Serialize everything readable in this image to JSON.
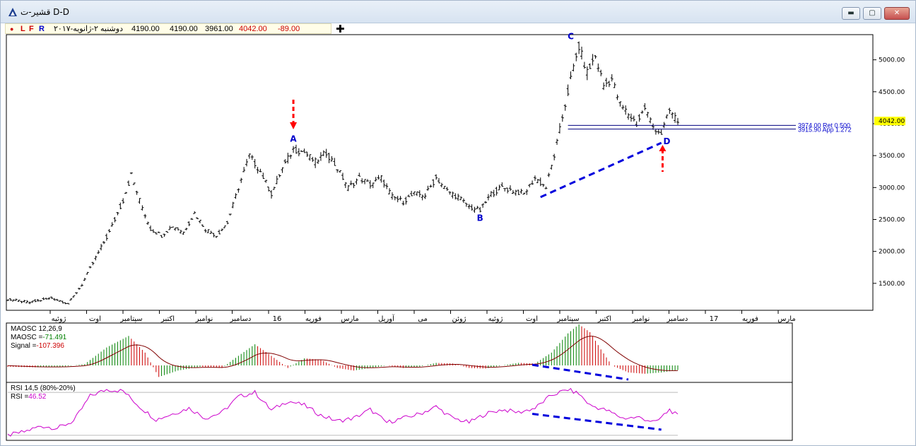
{
  "window": {
    "title": "قشیر-ت D-D",
    "buttons": {
      "minimize": "▬",
      "restore": "▢",
      "close": "✕"
    }
  },
  "toolbar": {
    "dot": "●",
    "l": "L",
    "f": "F",
    "r": "R",
    "date": "دوشنبه ۲-ژانویه-۲۰۱۷",
    "open": "4190.00",
    "high": "4190.00",
    "low": "3961.00",
    "close": "4042.00",
    "change": "-89.00",
    "plus": "✚"
  },
  "colors": {
    "up": "#008000",
    "down": "#cc0000",
    "rsi": "#cc00cc",
    "blue_line": "#0000dd",
    "annot": "#0000cc",
    "arrow": "#ff0000",
    "last_price_bg": "#ffff00"
  },
  "chart_data": [
    {
      "type": "bar",
      "name": "price",
      "ylim": [
        1100,
        5350
      ],
      "yticks": [
        "5000.00",
        "4500.00",
        "4000.00",
        "3500.00",
        "3000.00",
        "2500.00",
        "2000.00",
        "1500.00"
      ],
      "last_price": "4042.00",
      "xticks": [
        "ژوئیه",
        "اوت",
        "سپتامبر",
        "اکتبر",
        "نوامبر",
        "دسامبر",
        "16",
        "فوریه",
        "مارس",
        "آوریل",
        "می",
        "ژوئن",
        "ژوئیه",
        "اوت",
        "سپتامبر",
        "اکتبر",
        "نوامبر",
        "دسامبر",
        "17",
        "فوریه",
        "مارس"
      ],
      "points": [
        {
          "t": 0,
          "v": 1250
        },
        {
          "t": 8,
          "v": 1200
        },
        {
          "t": 16,
          "v": 1270
        },
        {
          "t": 22,
          "v": 1180
        },
        {
          "t": 27,
          "v": 1480
        },
        {
          "t": 32,
          "v": 1900
        },
        {
          "t": 37,
          "v": 2300
        },
        {
          "t": 42,
          "v": 2800
        },
        {
          "t": 45,
          "v": 3200
        },
        {
          "t": 48,
          "v": 2800
        },
        {
          "t": 52,
          "v": 2350
        },
        {
          "t": 56,
          "v": 2250
        },
        {
          "t": 60,
          "v": 2400
        },
        {
          "t": 64,
          "v": 2300
        },
        {
          "t": 68,
          "v": 2600
        },
        {
          "t": 72,
          "v": 2350
        },
        {
          "t": 76,
          "v": 2250
        },
        {
          "t": 80,
          "v": 2450
        },
        {
          "t": 84,
          "v": 3000
        },
        {
          "t": 88,
          "v": 3500
        },
        {
          "t": 92,
          "v": 3250
        },
        {
          "t": 96,
          "v": 2900
        },
        {
          "t": 100,
          "v": 3300
        },
        {
          "t": 104,
          "v": 3600
        },
        {
          "t": 108,
          "v": 3550
        },
        {
          "t": 112,
          "v": 3400
        },
        {
          "t": 116,
          "v": 3550
        },
        {
          "t": 120,
          "v": 3300
        },
        {
          "t": 124,
          "v": 3000
        },
        {
          "t": 128,
          "v": 3150
        },
        {
          "t": 132,
          "v": 3050
        },
        {
          "t": 136,
          "v": 3150
        },
        {
          "t": 140,
          "v": 2850
        },
        {
          "t": 144,
          "v": 2780
        },
        {
          "t": 148,
          "v": 2900
        },
        {
          "t": 152,
          "v": 2880
        },
        {
          "t": 156,
          "v": 3150
        },
        {
          "t": 160,
          "v": 2950
        },
        {
          "t": 164,
          "v": 2850
        },
        {
          "t": 168,
          "v": 2700
        },
        {
          "t": 172,
          "v": 2640
        },
        {
          "t": 176,
          "v": 2900
        },
        {
          "t": 180,
          "v": 3000
        },
        {
          "t": 184,
          "v": 2950
        },
        {
          "t": 188,
          "v": 2900
        },
        {
          "t": 192,
          "v": 3150
        },
        {
          "t": 196,
          "v": 3000
        },
        {
          "t": 199,
          "v": 3500
        },
        {
          "t": 202,
          "v": 4100
        },
        {
          "t": 205,
          "v": 4700
        },
        {
          "t": 208,
          "v": 5200
        },
        {
          "t": 211,
          "v": 4800
        },
        {
          "t": 214,
          "v": 5050
        },
        {
          "t": 217,
          "v": 4600
        },
        {
          "t": 220,
          "v": 4700
        },
        {
          "t": 223,
          "v": 4300
        },
        {
          "t": 226,
          "v": 4150
        },
        {
          "t": 229,
          "v": 4000
        },
        {
          "t": 232,
          "v": 4250
        },
        {
          "t": 235,
          "v": 3950
        },
        {
          "t": 238,
          "v": 3850
        },
        {
          "t": 241,
          "v": 4200
        },
        {
          "t": 244,
          "v": 4042
        }
      ],
      "fib_levels": [
        {
          "value": 3974,
          "label": "3974.00 Ret 0.500"
        },
        {
          "value": 3915.9,
          "label": "3915.90 App 1.272"
        }
      ],
      "annotations": [
        {
          "label": "A",
          "t": 104,
          "v": 3720
        },
        {
          "label": "B",
          "t": 172,
          "v": 2480
        },
        {
          "label": "C",
          "t": 205,
          "v": 5320
        },
        {
          "label": "D",
          "t": 240,
          "v": 3680
        }
      ],
      "trendline": {
        "from": {
          "t": 194,
          "v": 2850
        },
        "to": {
          "t": 238,
          "v": 3700
        }
      }
    },
    {
      "type": "bar",
      "name": "MAOSC",
      "title": "MAOSC 12,26,9",
      "labels": [
        {
          "text": "MAOSC =",
          "value": "-71.491"
        },
        {
          "text": "Signal =",
          "value": "-107.396"
        }
      ],
      "ylim": [
        -300,
        700
      ],
      "points": [
        {
          "t": 0,
          "v": -20
        },
        {
          "t": 10,
          "v": -30
        },
        {
          "t": 20,
          "v": -20
        },
        {
          "t": 28,
          "v": 20
        },
        {
          "t": 36,
          "v": 280
        },
        {
          "t": 44,
          "v": 460
        },
        {
          "t": 50,
          "v": 200
        },
        {
          "t": 55,
          "v": -180
        },
        {
          "t": 62,
          "v": -80
        },
        {
          "t": 70,
          "v": -20
        },
        {
          "t": 78,
          "v": -40
        },
        {
          "t": 84,
          "v": 150
        },
        {
          "t": 90,
          "v": 330
        },
        {
          "t": 96,
          "v": 150
        },
        {
          "t": 102,
          "v": -40
        },
        {
          "t": 108,
          "v": 110
        },
        {
          "t": 114,
          "v": 90
        },
        {
          "t": 120,
          "v": -40
        },
        {
          "t": 126,
          "v": -80
        },
        {
          "t": 132,
          "v": -40
        },
        {
          "t": 138,
          "v": 0
        },
        {
          "t": 144,
          "v": -40
        },
        {
          "t": 150,
          "v": -20
        },
        {
          "t": 156,
          "v": 40
        },
        {
          "t": 162,
          "v": 30
        },
        {
          "t": 168,
          "v": -40
        },
        {
          "t": 174,
          "v": -50
        },
        {
          "t": 180,
          "v": 0
        },
        {
          "t": 186,
          "v": 40
        },
        {
          "t": 192,
          "v": 30
        },
        {
          "t": 198,
          "v": 200
        },
        {
          "t": 204,
          "v": 500
        },
        {
          "t": 208,
          "v": 640
        },
        {
          "t": 212,
          "v": 520
        },
        {
          "t": 216,
          "v": 250
        },
        {
          "t": 220,
          "v": 0
        },
        {
          "t": 226,
          "v": -110
        },
        {
          "t": 232,
          "v": -130
        },
        {
          "t": 238,
          "v": -110
        },
        {
          "t": 244,
          "v": -72
        }
      ],
      "trendline": {
        "from": {
          "t": 191,
          "v": 10
        },
        "to": {
          "t": 226,
          "v": -220
        }
      }
    },
    {
      "type": "line",
      "name": "RSI",
      "title": "RSI 14,5 (80%-20%)",
      "labels": [
        {
          "text": "RSI =",
          "value": "46.52"
        }
      ],
      "ylim": [
        15,
        90
      ],
      "bands": [
        80,
        20
      ],
      "points": [
        {
          "t": 0,
          "v": 20
        },
        {
          "t": 6,
          "v": 25
        },
        {
          "t": 12,
          "v": 33
        },
        {
          "t": 18,
          "v": 30
        },
        {
          "t": 24,
          "v": 40
        },
        {
          "t": 30,
          "v": 75
        },
        {
          "t": 36,
          "v": 84
        },
        {
          "t": 42,
          "v": 82
        },
        {
          "t": 48,
          "v": 60
        },
        {
          "t": 54,
          "v": 42
        },
        {
          "t": 60,
          "v": 50
        },
        {
          "t": 66,
          "v": 58
        },
        {
          "t": 72,
          "v": 44
        },
        {
          "t": 78,
          "v": 52
        },
        {
          "t": 84,
          "v": 74
        },
        {
          "t": 90,
          "v": 80
        },
        {
          "t": 96,
          "v": 55
        },
        {
          "t": 102,
          "v": 68
        },
        {
          "t": 108,
          "v": 62
        },
        {
          "t": 114,
          "v": 48
        },
        {
          "t": 120,
          "v": 40
        },
        {
          "t": 126,
          "v": 44
        },
        {
          "t": 132,
          "v": 56
        },
        {
          "t": 138,
          "v": 38
        },
        {
          "t": 144,
          "v": 44
        },
        {
          "t": 150,
          "v": 50
        },
        {
          "t": 156,
          "v": 60
        },
        {
          "t": 162,
          "v": 44
        },
        {
          "t": 168,
          "v": 38
        },
        {
          "t": 174,
          "v": 50
        },
        {
          "t": 180,
          "v": 56
        },
        {
          "t": 186,
          "v": 52
        },
        {
          "t": 192,
          "v": 58
        },
        {
          "t": 198,
          "v": 76
        },
        {
          "t": 204,
          "v": 84
        },
        {
          "t": 208,
          "v": 78
        },
        {
          "t": 212,
          "v": 62
        },
        {
          "t": 218,
          "v": 55
        },
        {
          "t": 224,
          "v": 44
        },
        {
          "t": 230,
          "v": 45
        },
        {
          "t": 236,
          "v": 38
        },
        {
          "t": 241,
          "v": 56
        },
        {
          "t": 244,
          "v": 47
        }
      ],
      "trendline": {
        "from": {
          "t": 191,
          "v": 50
        },
        "to": {
          "t": 238,
          "v": 28
        }
      }
    }
  ]
}
